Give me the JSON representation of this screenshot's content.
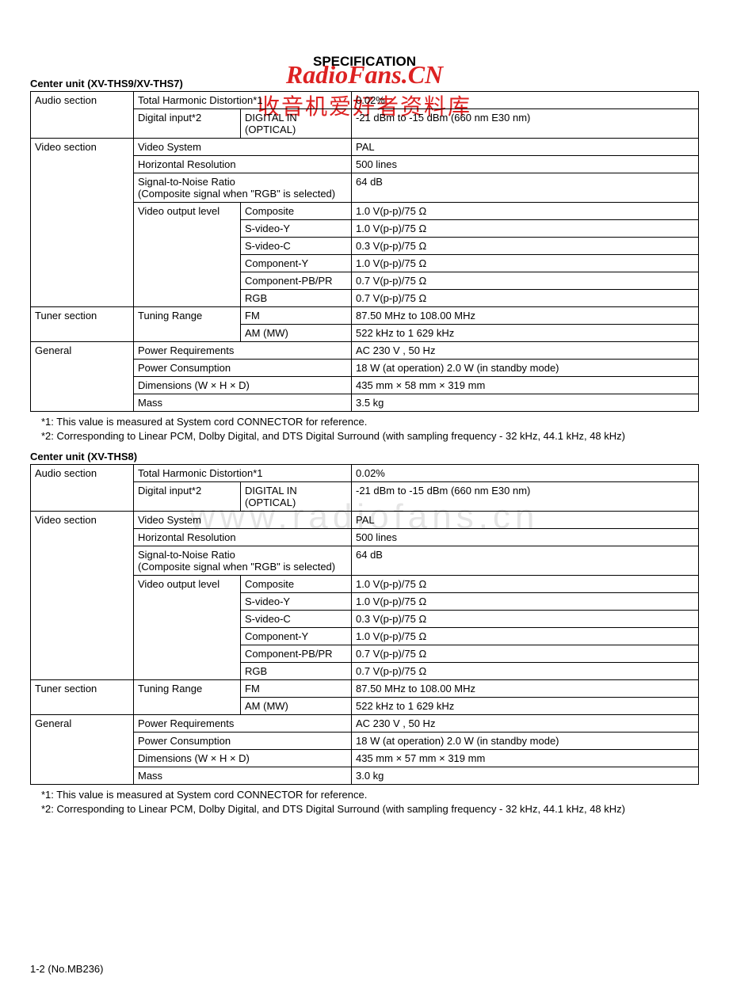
{
  "watermark": {
    "site": "RadioFans.CN",
    "tagline": "收音机爱好者资料库",
    "mid": "www.radiofans.cn"
  },
  "page_title": "SPECIFICATION",
  "footer": "1-2 (No.MB236)",
  "notes": {
    "n1": "*1: This value is measured at System cord CONNECTOR for reference.",
    "n2": "*2: Corresponding to Linear PCM, Dolby Digital, and DTS Digital Surround (with sampling frequency - 32 kHz, 44.1 kHz, 48 kHz)"
  },
  "tableA": {
    "title": "Center unit (XV-THS9/XV-THS7)",
    "rows": {
      "audio": "Audio section",
      "thd_l": "Total Harmonic Distortion*1",
      "thd_v": "0.02%",
      "din_l": "Digital input*2",
      "din_m": "DIGITAL IN (OPTICAL)",
      "din_v": "-21 dBm to -15 dBm (660 nm E30 nm)",
      "video": "Video section",
      "vsys_l": "Video System",
      "vsys_v": "PAL",
      "hres_l": "Horizontal Resolution",
      "hres_v": "500 lines",
      "snr_l1": "Signal-to-Noise Ratio",
      "snr_l2": "(Composite signal when \"RGB\" is selected)",
      "snr_v": "64 dB",
      "vout_l": "Video output level",
      "vout_comp_l": "Composite",
      "vout_comp_v": "1.0 V(p-p)/75 Ω",
      "vout_svy_l": "S-video-Y",
      "vout_svy_v": "1.0 V(p-p)/75 Ω",
      "vout_svc_l": "S-video-C",
      "vout_svc_v": "0.3 V(p-p)/75 Ω",
      "vout_cy_l": "Component-Y",
      "vout_cy_v": "1.0 V(p-p)/75 Ω",
      "vout_cpb_l": "Component-PB/PR",
      "vout_cpb_v": "0.7 V(p-p)/75 Ω",
      "vout_rgb_l": "RGB",
      "vout_rgb_v": "0.7 V(p-p)/75 Ω",
      "tuner": "Tuner section",
      "trng_l": "Tuning Range",
      "trng_fm_l": "FM",
      "trng_fm_v": "87.50 MHz to 108.00 MHz",
      "trng_am_l": "AM (MW)",
      "trng_am_v": "522 kHz to 1 629 kHz",
      "general": "General",
      "preq_l": "Power Requirements",
      "preq_v": "AC 230 V , 50 Hz",
      "pcon_l": "Power Consumption",
      "pcon_v": "18 W (at operation) 2.0 W (in standby mode)",
      "dim_l": "Dimensions (W × H × D)",
      "dim_v": "435 mm × 58 mm × 319 mm",
      "mass_l": "Mass",
      "mass_v": "3.5 kg"
    }
  },
  "tableB": {
    "title": "Center unit (XV-THS8)",
    "rows": {
      "audio": "Audio section",
      "thd_l": "Total Harmonic Distortion*1",
      "thd_v": "0.02%",
      "din_l": "Digital input*2",
      "din_m": "DIGITAL IN (OPTICAL)",
      "din_v": "-21 dBm to -15 dBm (660 nm E30 nm)",
      "video": "Video section",
      "vsys_l": "Video System",
      "vsys_v": "PAL",
      "hres_l": "Horizontal Resolution",
      "hres_v": "500 lines",
      "snr_l1": "Signal-to-Noise Ratio",
      "snr_l2": "(Composite signal when \"RGB\" is selected)",
      "snr_v": "64 dB",
      "vout_l": "Video output level",
      "vout_comp_l": "Composite",
      "vout_comp_v": "1.0 V(p-p)/75 Ω",
      "vout_svy_l": "S-video-Y",
      "vout_svy_v": "1.0 V(p-p)/75 Ω",
      "vout_svc_l": "S-video-C",
      "vout_svc_v": "0.3 V(p-p)/75 Ω",
      "vout_cy_l": "Component-Y",
      "vout_cy_v": "1.0 V(p-p)/75 Ω",
      "vout_cpb_l": "Component-PB/PR",
      "vout_cpb_v": "0.7 V(p-p)/75 Ω",
      "vout_rgb_l": "RGB",
      "vout_rgb_v": "0.7 V(p-p)/75 Ω",
      "tuner": "Tuner section",
      "trng_l": "Tuning Range",
      "trng_fm_l": "FM",
      "trng_fm_v": "87.50 MHz to 108.00 MHz",
      "trng_am_l": "AM (MW)",
      "trng_am_v": "522 kHz to 1 629 kHz",
      "general": "General",
      "preq_l": "Power Requirements",
      "preq_v": "AC 230 V , 50 Hz",
      "pcon_l": "Power Consumption",
      "pcon_v": "18 W (at operation) 2.0 W (in standby mode)",
      "dim_l": "Dimensions (W × H × D)",
      "dim_v": "435 mm × 57 mm × 319 mm",
      "mass_l": "Mass",
      "mass_v": "3.0 kg"
    }
  }
}
